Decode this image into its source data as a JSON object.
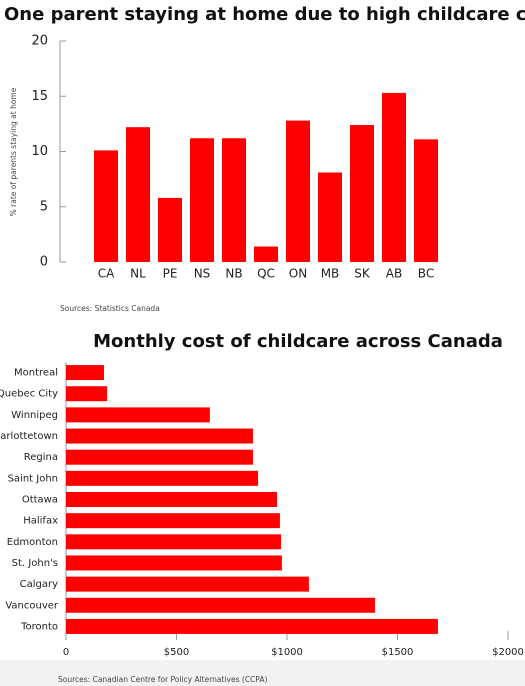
{
  "chart_data": [
    {
      "type": "bar",
      "title": "One parent staying at home due to high childcare costs",
      "y_label": "% rate of parents staying at home",
      "categories": [
        "CA",
        "NL",
        "PE",
        "NS",
        "NB",
        "QC",
        "ON",
        "MB",
        "SK",
        "AB",
        "BC"
      ],
      "values": [
        10.1,
        12.2,
        5.8,
        11.2,
        11.2,
        1.4,
        12.8,
        8.1,
        12.4,
        15.3,
        11.1
      ],
      "color": "#ff0000",
      "ylim": [
        0,
        20
      ],
      "yticks": [
        0,
        5,
        10,
        15,
        20
      ],
      "source": "Sources: Statistics Canada"
    },
    {
      "type": "barh",
      "title": "Monthly cost of childcare across Canada",
      "categories": [
        "Montreal",
        "Quebec City",
        "Winnipeg",
        "Charlottetown",
        "Regina",
        "Saint John",
        "Ottawa",
        "Halifax",
        "Edmonton",
        "St. John's",
        "Calgary",
        "Vancouver",
        "Toronto"
      ],
      "values": [
        172,
        186,
        651,
        846,
        846,
        869,
        955,
        968,
        973,
        977,
        1099,
        1398,
        1683
      ],
      "color": "#ff0000",
      "xlim": [
        0,
        2000
      ],
      "xticks": [
        0,
        {
          "value": 500,
          "label": "$500"
        },
        {
          "value": 1000,
          "label": "$1000"
        },
        {
          "value": 1500,
          "label": "$1500"
        },
        {
          "value": 2000,
          "label": "$2000"
        }
      ],
      "source": "Sources: Canadian Centre for Policy Alternatives (CCPA)"
    }
  ]
}
